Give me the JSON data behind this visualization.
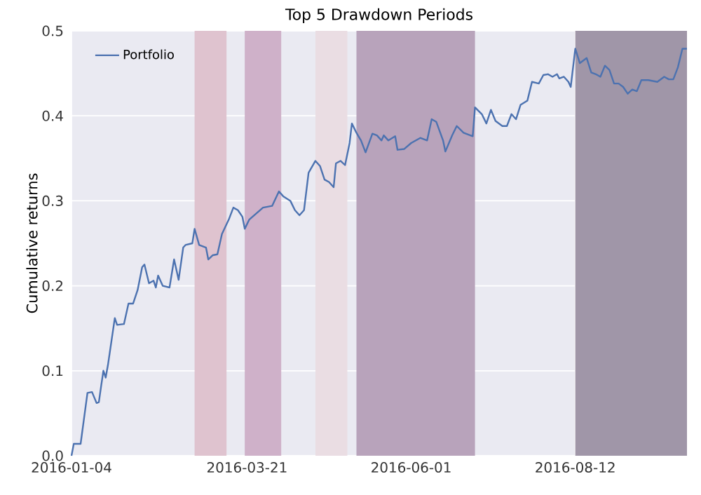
{
  "chart_data": {
    "type": "line",
    "title": "Top 5 Drawdown Periods",
    "ylabel": "Cumulative returns",
    "xlim": [
      "2016-01-04",
      "2016-09-30"
    ],
    "ylim": [
      0,
      0.5
    ],
    "xticks": [
      "2016-01-04",
      "2016-03-21",
      "2016-06-01",
      "2016-08-12"
    ],
    "yticks": [
      {
        "value": 0,
        "label": "0.0"
      },
      0.1,
      0.2,
      0.3,
      0.4,
      0.5
    ],
    "grid": true,
    "legend": "top left",
    "bands": [
      {
        "axis": "x",
        "from": "2016-02-27",
        "to": "2016-03-12",
        "color": "#dfc3cf"
      },
      {
        "axis": "x",
        "from": "2016-03-20",
        "to": "2016-04-05",
        "color": "#cfb1c9"
      },
      {
        "axis": "x",
        "from": "2016-04-20",
        "to": "2016-05-04",
        "color": "#eadde3"
      },
      {
        "axis": "x",
        "from": "2016-05-08",
        "to": "2016-06-29",
        "color": "#b8a3bb"
      },
      {
        "axis": "x",
        "from": "2016-08-12",
        "to": "2016-09-30",
        "color": "#a096a8"
      }
    ],
    "series": [
      {
        "name": "Portfolio",
        "color": "#4c72b0",
        "x": [
          "2016-01-04",
          "2016-01-05",
          "2016-01-08",
          "2016-01-11",
          "2016-01-13",
          "2016-01-15",
          "2016-01-16",
          "2016-01-17",
          "2016-01-18",
          "2016-01-19",
          "2016-01-20",
          "2016-01-23",
          "2016-01-24",
          "2016-01-27",
          "2016-01-29",
          "2016-01-31",
          "2016-02-02",
          "2016-02-04",
          "2016-02-05",
          "2016-02-07",
          "2016-02-09",
          "2016-02-10",
          "2016-02-11",
          "2016-02-13",
          "2016-02-16",
          "2016-02-18",
          "2016-02-20",
          "2016-02-22",
          "2016-02-23",
          "2016-02-26",
          "2016-02-27",
          "2016-02-29",
          "2016-03-03",
          "2016-03-04",
          "2016-03-06",
          "2016-03-08",
          "2016-03-10",
          "2016-03-13",
          "2016-03-15",
          "2016-03-17",
          "2016-03-19",
          "2016-03-20",
          "2016-03-22",
          "2016-03-28",
          "2016-04-01",
          "2016-04-04",
          "2016-04-06",
          "2016-04-09",
          "2016-04-11",
          "2016-04-13",
          "2016-04-15",
          "2016-04-17",
          "2016-04-20",
          "2016-04-22",
          "2016-04-24",
          "2016-04-26",
          "2016-04-28",
          "2016-04-29",
          "2016-05-01",
          "2016-05-03",
          "2016-05-05",
          "2016-05-06",
          "2016-05-08",
          "2016-05-10",
          "2016-05-12",
          "2016-05-15",
          "2016-05-17",
          "2016-05-19",
          "2016-05-20",
          "2016-05-22",
          "2016-05-25",
          "2016-05-26",
          "2016-05-29",
          "2016-06-01",
          "2016-06-05",
          "2016-06-08",
          "2016-06-10",
          "2016-06-12",
          "2016-06-15",
          "2016-06-16",
          "2016-06-19",
          "2016-06-21",
          "2016-06-24",
          "2016-06-28",
          "2016-06-29",
          "2016-07-02",
          "2016-07-04",
          "2016-07-06",
          "2016-07-08",
          "2016-07-11",
          "2016-07-13",
          "2016-07-15",
          "2016-07-17",
          "2016-07-19",
          "2016-07-22",
          "2016-07-24",
          "2016-07-27",
          "2016-07-29",
          "2016-07-31",
          "2016-08-02",
          "2016-08-04",
          "2016-08-05",
          "2016-08-07",
          "2016-08-09",
          "2016-08-10",
          "2016-08-12",
          "2016-08-14",
          "2016-08-17",
          "2016-08-19",
          "2016-08-21",
          "2016-08-23",
          "2016-08-25",
          "2016-08-27",
          "2016-08-29",
          "2016-08-31",
          "2016-09-02",
          "2016-09-04",
          "2016-09-06",
          "2016-09-08",
          "2016-09-10",
          "2016-09-13",
          "2016-09-17",
          "2016-09-20",
          "2016-09-22",
          "2016-09-24",
          "2016-09-26",
          "2016-09-28",
          "2016-09-30"
        ],
        "values": [
          0.0,
          0.014,
          0.014,
          0.074,
          0.075,
          0.062,
          0.063,
          0.082,
          0.1,
          0.092,
          0.107,
          0.162,
          0.154,
          0.155,
          0.179,
          0.179,
          0.195,
          0.222,
          0.225,
          0.203,
          0.206,
          0.198,
          0.212,
          0.2,
          0.198,
          0.231,
          0.207,
          0.245,
          0.248,
          0.25,
          0.267,
          0.248,
          0.245,
          0.231,
          0.236,
          0.237,
          0.261,
          0.278,
          0.292,
          0.289,
          0.281,
          0.267,
          0.278,
          0.292,
          0.294,
          0.311,
          0.305,
          0.3,
          0.289,
          0.283,
          0.289,
          0.333,
          0.347,
          0.341,
          0.325,
          0.322,
          0.316,
          0.344,
          0.347,
          0.342,
          0.368,
          0.391,
          0.38,
          0.371,
          0.357,
          0.379,
          0.377,
          0.371,
          0.377,
          0.371,
          0.376,
          0.36,
          0.361,
          0.368,
          0.374,
          0.371,
          0.396,
          0.393,
          0.371,
          0.358,
          0.377,
          0.388,
          0.38,
          0.376,
          0.41,
          0.402,
          0.391,
          0.407,
          0.394,
          0.388,
          0.388,
          0.402,
          0.396,
          0.413,
          0.418,
          0.44,
          0.438,
          0.448,
          0.449,
          0.446,
          0.449,
          0.444,
          0.446,
          0.44,
          0.434,
          0.479,
          0.462,
          0.468,
          0.451,
          0.449,
          0.446,
          0.459,
          0.454,
          0.438,
          0.438,
          0.434,
          0.426,
          0.431,
          0.429,
          0.442,
          0.442,
          0.44,
          0.446,
          0.443,
          0.443,
          0.457,
          0.479,
          0.479
        ]
      }
    ]
  }
}
